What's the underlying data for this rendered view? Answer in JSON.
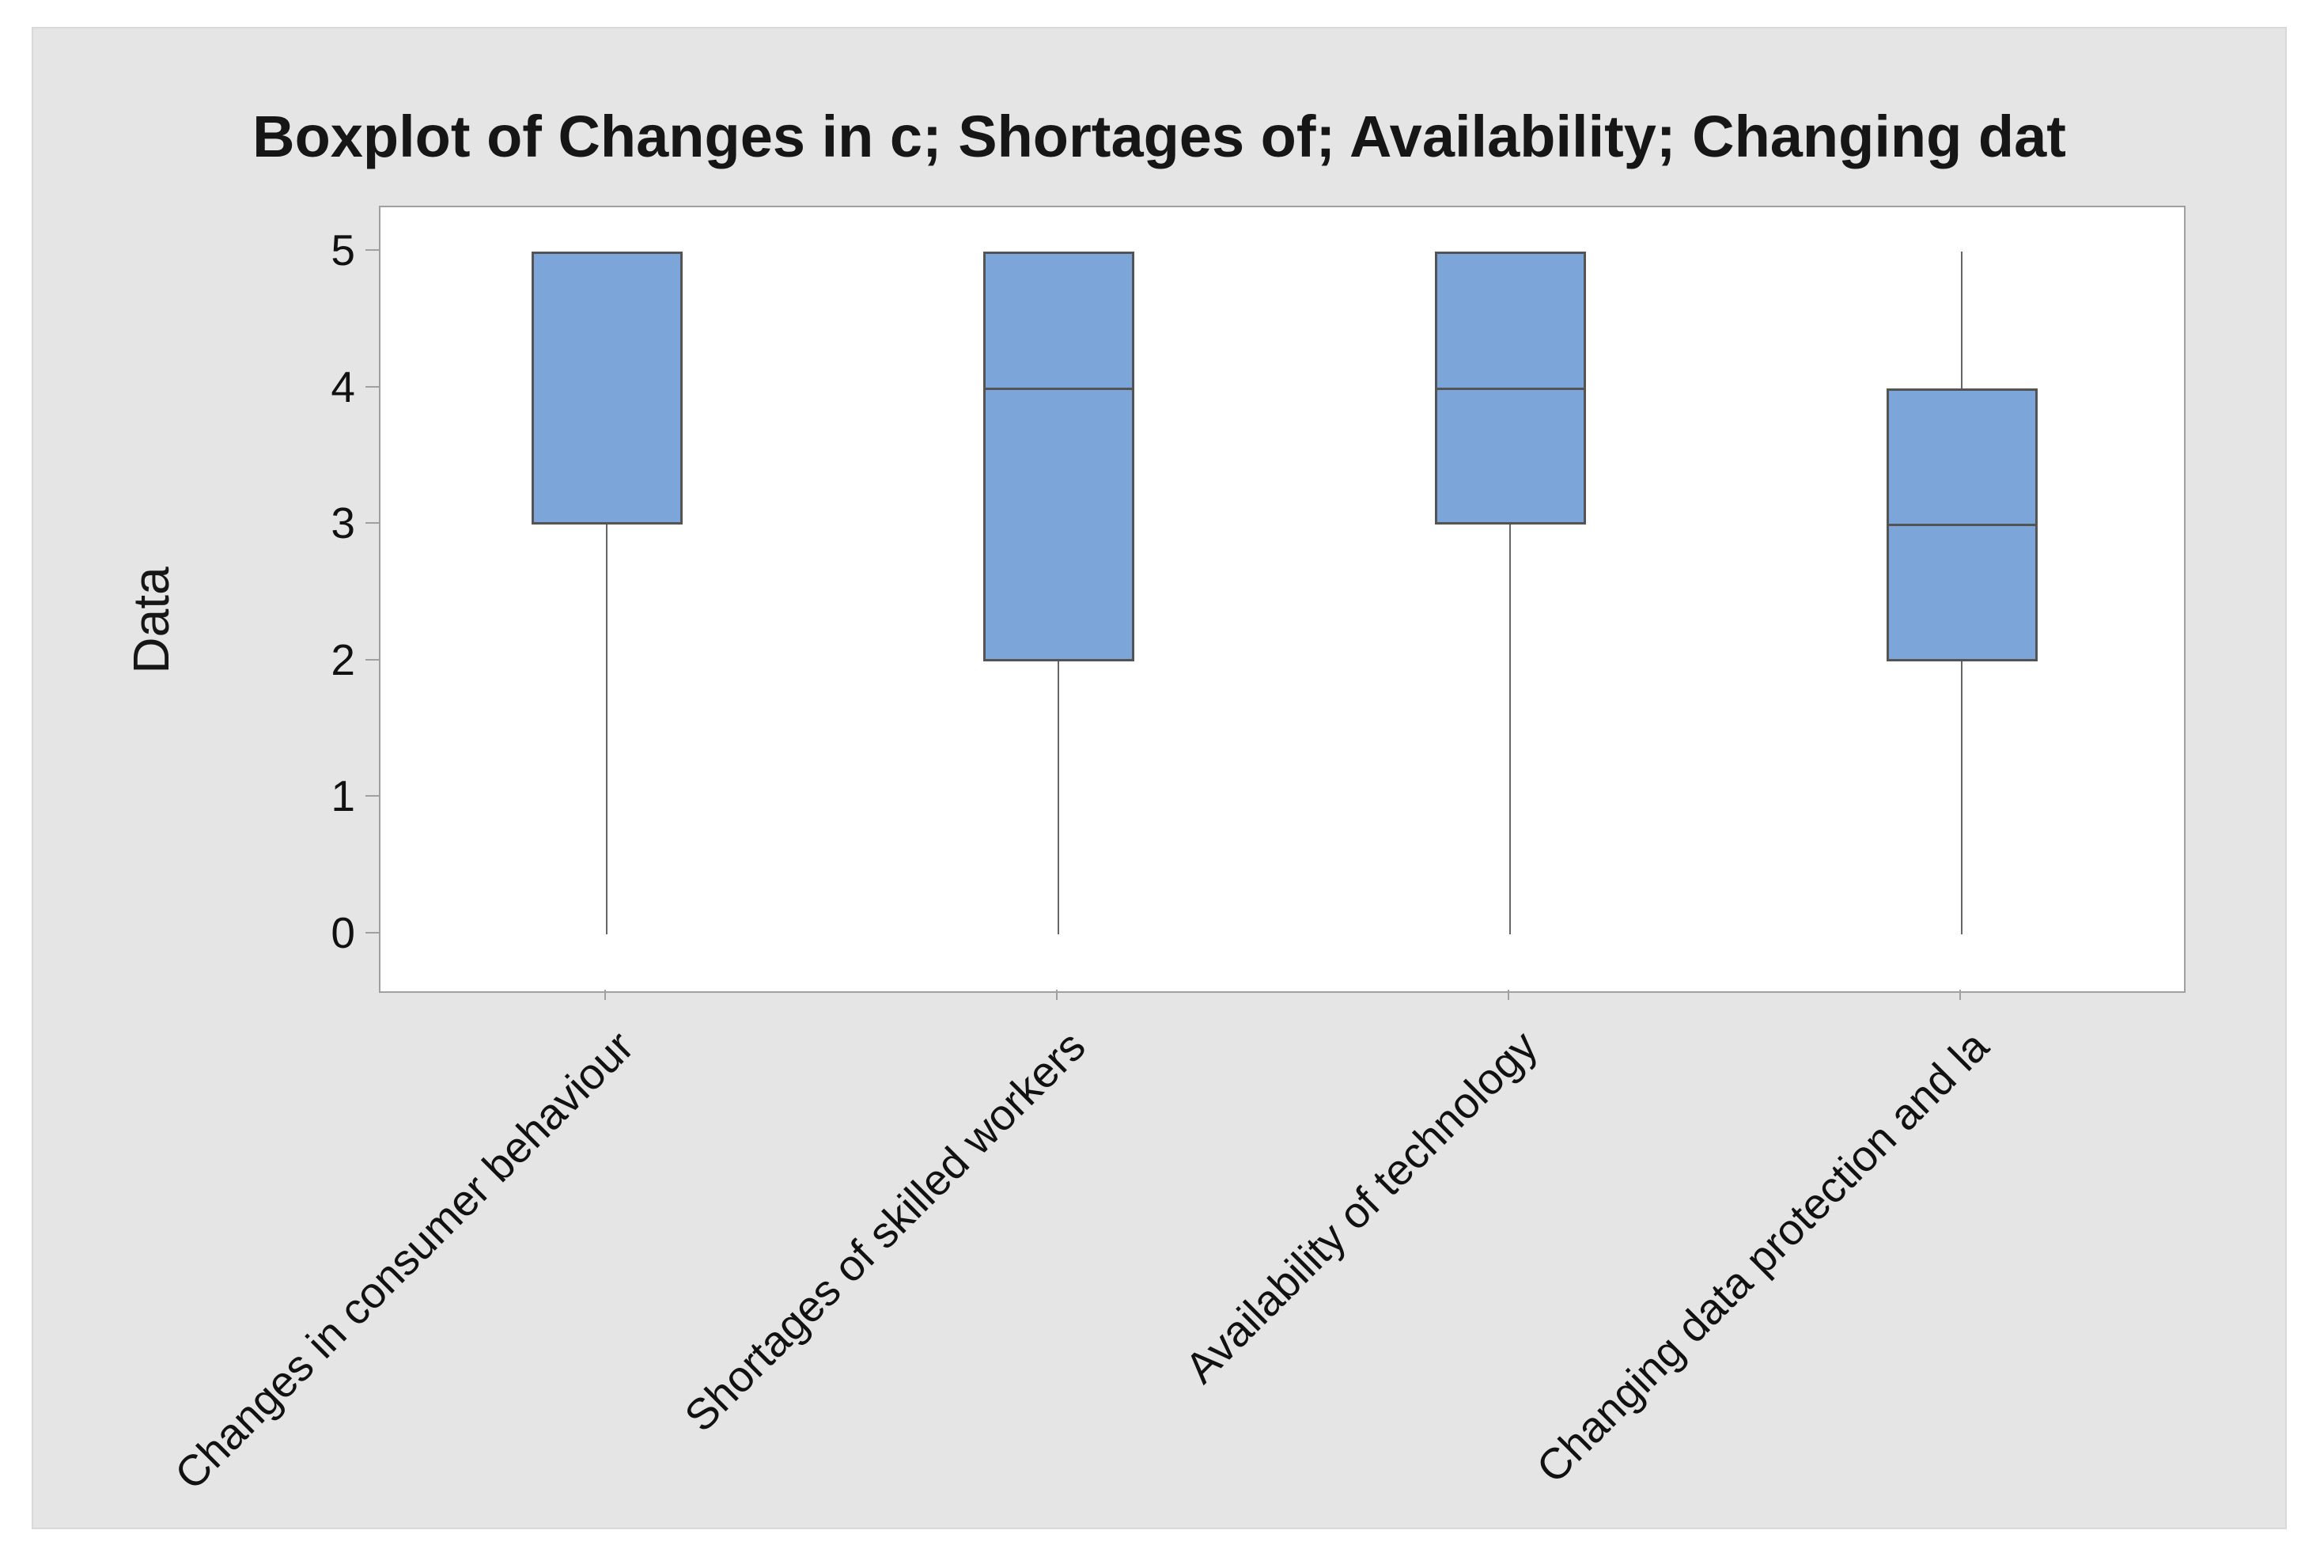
{
  "chart": {
    "canvas_background": "#e5e5e5",
    "plot_background": "#ffffff",
    "plot_border_color": "#a0a0a0",
    "box_fill_color": "#7ca6d9",
    "box_border_color": "#545454",
    "whisker_color": "#666666",
    "tick_color": "#a0a0a0",
    "text_color": "#111111"
  },
  "chart_data": {
    "type": "boxplot",
    "orientation": "vertical",
    "title": "Boxplot of Changes in c; Shortages of; Availability; Changing dat",
    "xlabel": "",
    "ylabel": "Data",
    "ylim": [
      0,
      5
    ],
    "yticks": [
      0,
      1,
      2,
      3,
      4,
      5
    ],
    "grid": false,
    "legend": false,
    "categories": [
      "Changes in consumer behaviour",
      "Shortages of skilled workers",
      "Availability of technology",
      "Changing data protection and la"
    ],
    "series": [
      {
        "name": "Changes in consumer behaviour",
        "min": 0,
        "q1": 3,
        "median": 5,
        "q3": 5,
        "max": 5
      },
      {
        "name": "Shortages of skilled workers",
        "min": 0,
        "q1": 2,
        "median": 4,
        "q3": 5,
        "max": 5
      },
      {
        "name": "Availability of technology",
        "min": 0,
        "q1": 3,
        "median": 4,
        "q3": 5,
        "max": 5
      },
      {
        "name": "Changing data protection and la",
        "min": 0,
        "q1": 2,
        "median": 3,
        "q3": 4,
        "max": 5
      }
    ]
  }
}
